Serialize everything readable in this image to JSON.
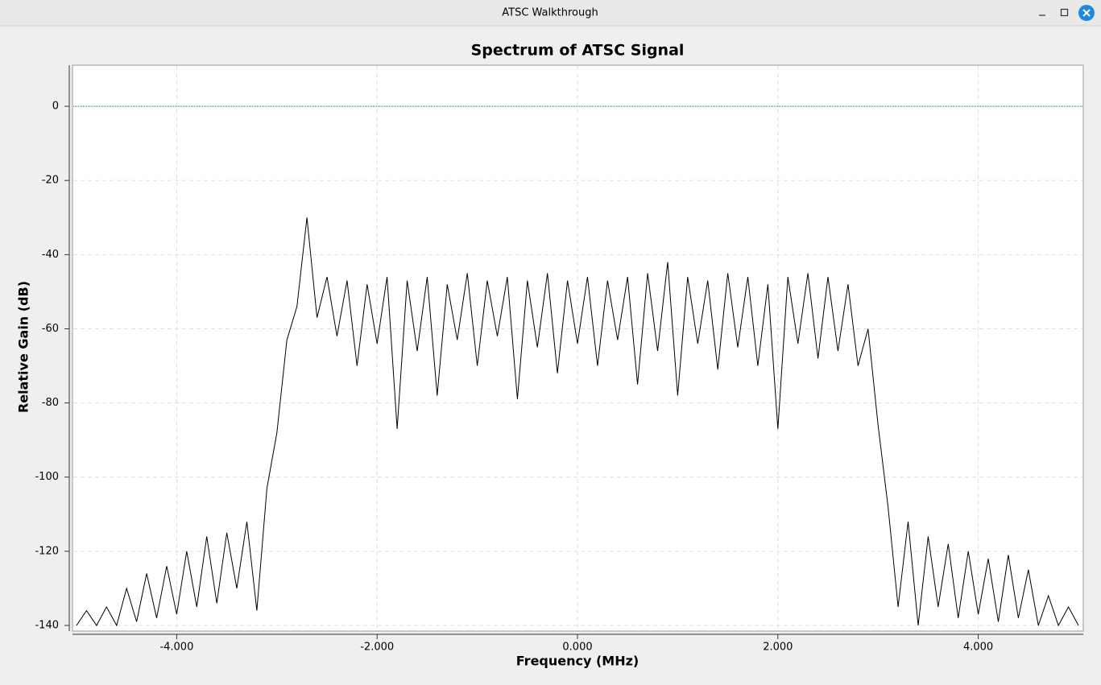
{
  "window": {
    "title": "ATSC Walkthrough"
  },
  "chart_data": {
    "type": "line",
    "title": "Spectrum of ATSC Signal",
    "x_label": "Frequency (MHz)",
    "y_label": "Relative Gain (dB)",
    "x": [
      -5,
      -4.9,
      -4.8,
      -4.7,
      -4.6,
      -4.5,
      -4.4,
      -4.3,
      -4.2,
      -4.1,
      -4,
      -3.9,
      -3.8,
      -3.7,
      -3.6,
      -3.5,
      -3.4,
      -3.3,
      -3.2,
      -3.1,
      -3,
      -2.9,
      -2.8,
      -2.7,
      -2.6,
      -2.5,
      -2.4,
      -2.3,
      -2.2,
      -2.1,
      -2,
      -1.9,
      -1.8,
      -1.7,
      -1.6,
      -1.5,
      -1.4,
      -1.3,
      -1.2,
      -1.1,
      -1,
      -0.9,
      -0.8,
      -0.7,
      -0.6,
      -0.5,
      -0.4,
      -0.3,
      -0.2,
      -0.1,
      0,
      0.1,
      0.2,
      0.3,
      0.4,
      0.5,
      0.6,
      0.7,
      0.8,
      0.9,
      1,
      1.1,
      1.2,
      1.3,
      1.4,
      1.5,
      1.6,
      1.7,
      1.8,
      1.9,
      2,
      2.1,
      2.2,
      2.3,
      2.4,
      2.5,
      2.6,
      2.7,
      2.8,
      2.9,
      3,
      3.1,
      3.2,
      3.3,
      3.4,
      3.5,
      3.6,
      3.7,
      3.8,
      3.9,
      4,
      4.1,
      4.2,
      4.3,
      4.4,
      4.5,
      4.6,
      4.7,
      4.8,
      4.9,
      5
    ],
    "series": [
      {
        "color": "#000000",
        "values": [
          -140,
          -136,
          -140,
          -135,
          -140,
          -130,
          -139,
          -126,
          -138,
          -124,
          -137,
          -120,
          -135,
          -116,
          -134,
          -115,
          -130,
          -112,
          -136,
          -103,
          -88,
          -63,
          -54,
          -30,
          -57,
          -46,
          -62,
          -47,
          -70,
          -48,
          -64,
          -46,
          -87,
          -47,
          -66,
          -46,
          -78,
          -48,
          -63,
          -45,
          -70,
          -47,
          -62,
          -46,
          -79,
          -47,
          -65,
          -45,
          -72,
          -47,
          -64,
          -46,
          -70,
          -47,
          -63,
          -46,
          -75,
          -45,
          -66,
          -42,
          -78,
          -46,
          -64,
          -47,
          -71,
          -45,
          -65,
          -46,
          -70,
          -48,
          -87,
          -46,
          -64,
          -45,
          -68,
          -46,
          -66,
          -48,
          -70,
          -60,
          -86,
          -108,
          -135,
          -112,
          -140,
          -116,
          -135,
          -118,
          -138,
          -120,
          -137,
          -122,
          -139,
          -121,
          -138,
          -125,
          -140,
          -132,
          -140,
          -135,
          -140
        ]
      }
    ],
    "reference_line": {
      "value": 0,
      "color": "#00808c"
    },
    "xlim": [
      -5,
      5
    ],
    "xticks": [
      {
        "value": -4,
        "label": "-4.000"
      },
      {
        "value": -2,
        "label": "-2.000"
      },
      {
        "value": 0,
        "label": "0.000"
      },
      {
        "value": 2,
        "label": "2.000"
      },
      {
        "value": 4,
        "label": "4.000"
      }
    ],
    "ylim": [
      -140,
      10
    ],
    "yticks": [
      0,
      -20,
      -40,
      -60,
      -80,
      -100,
      -120,
      -140
    ],
    "grid": true
  }
}
